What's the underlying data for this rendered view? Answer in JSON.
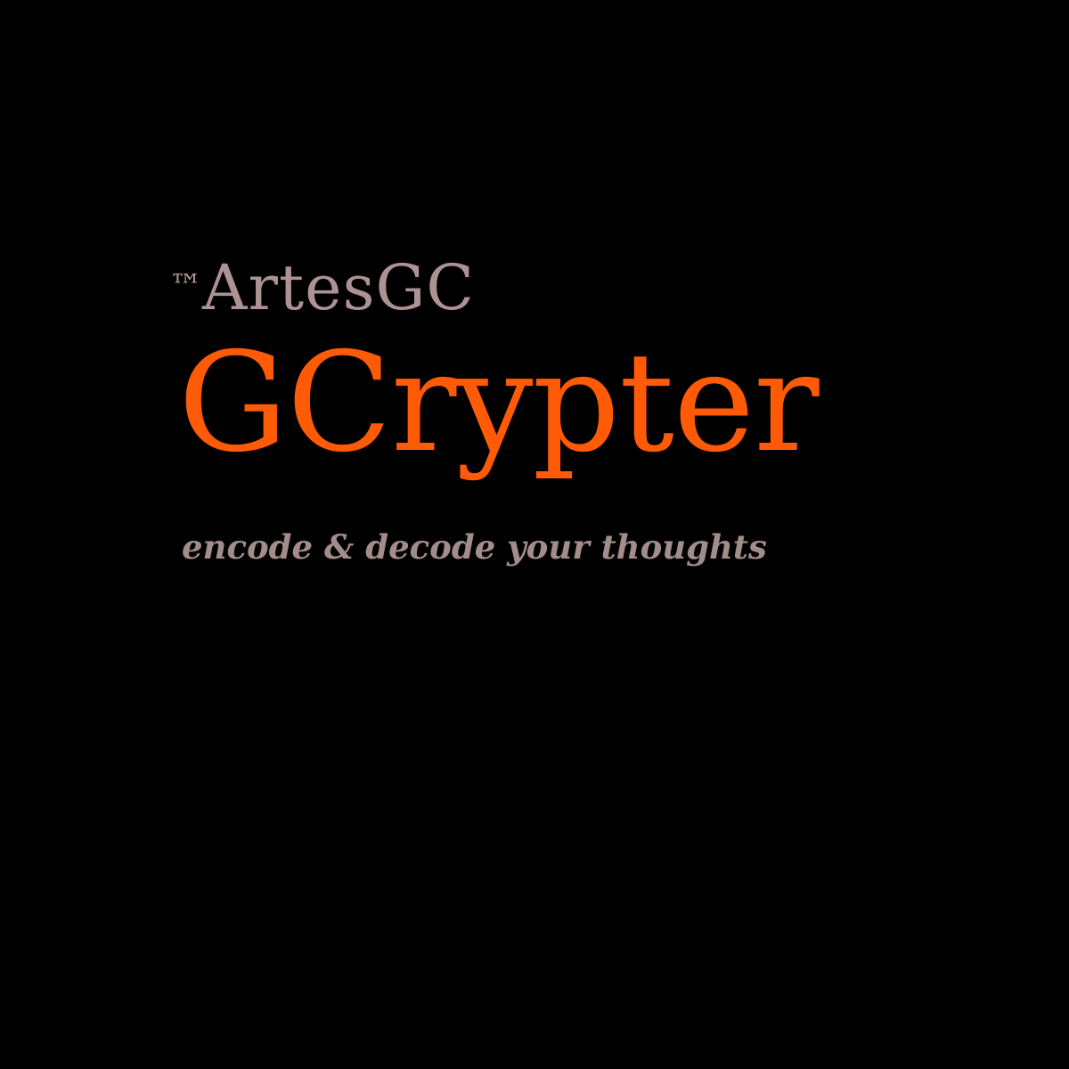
{
  "logo": {
    "trademark": "™",
    "company": "ArtesGC",
    "product": "GCrypter",
    "tagline": "encode & decode your thoughts"
  },
  "colors": {
    "background": "#000000",
    "company": "#ad9293",
    "product": "#ff5a06",
    "tagline": "#a38d8a"
  }
}
